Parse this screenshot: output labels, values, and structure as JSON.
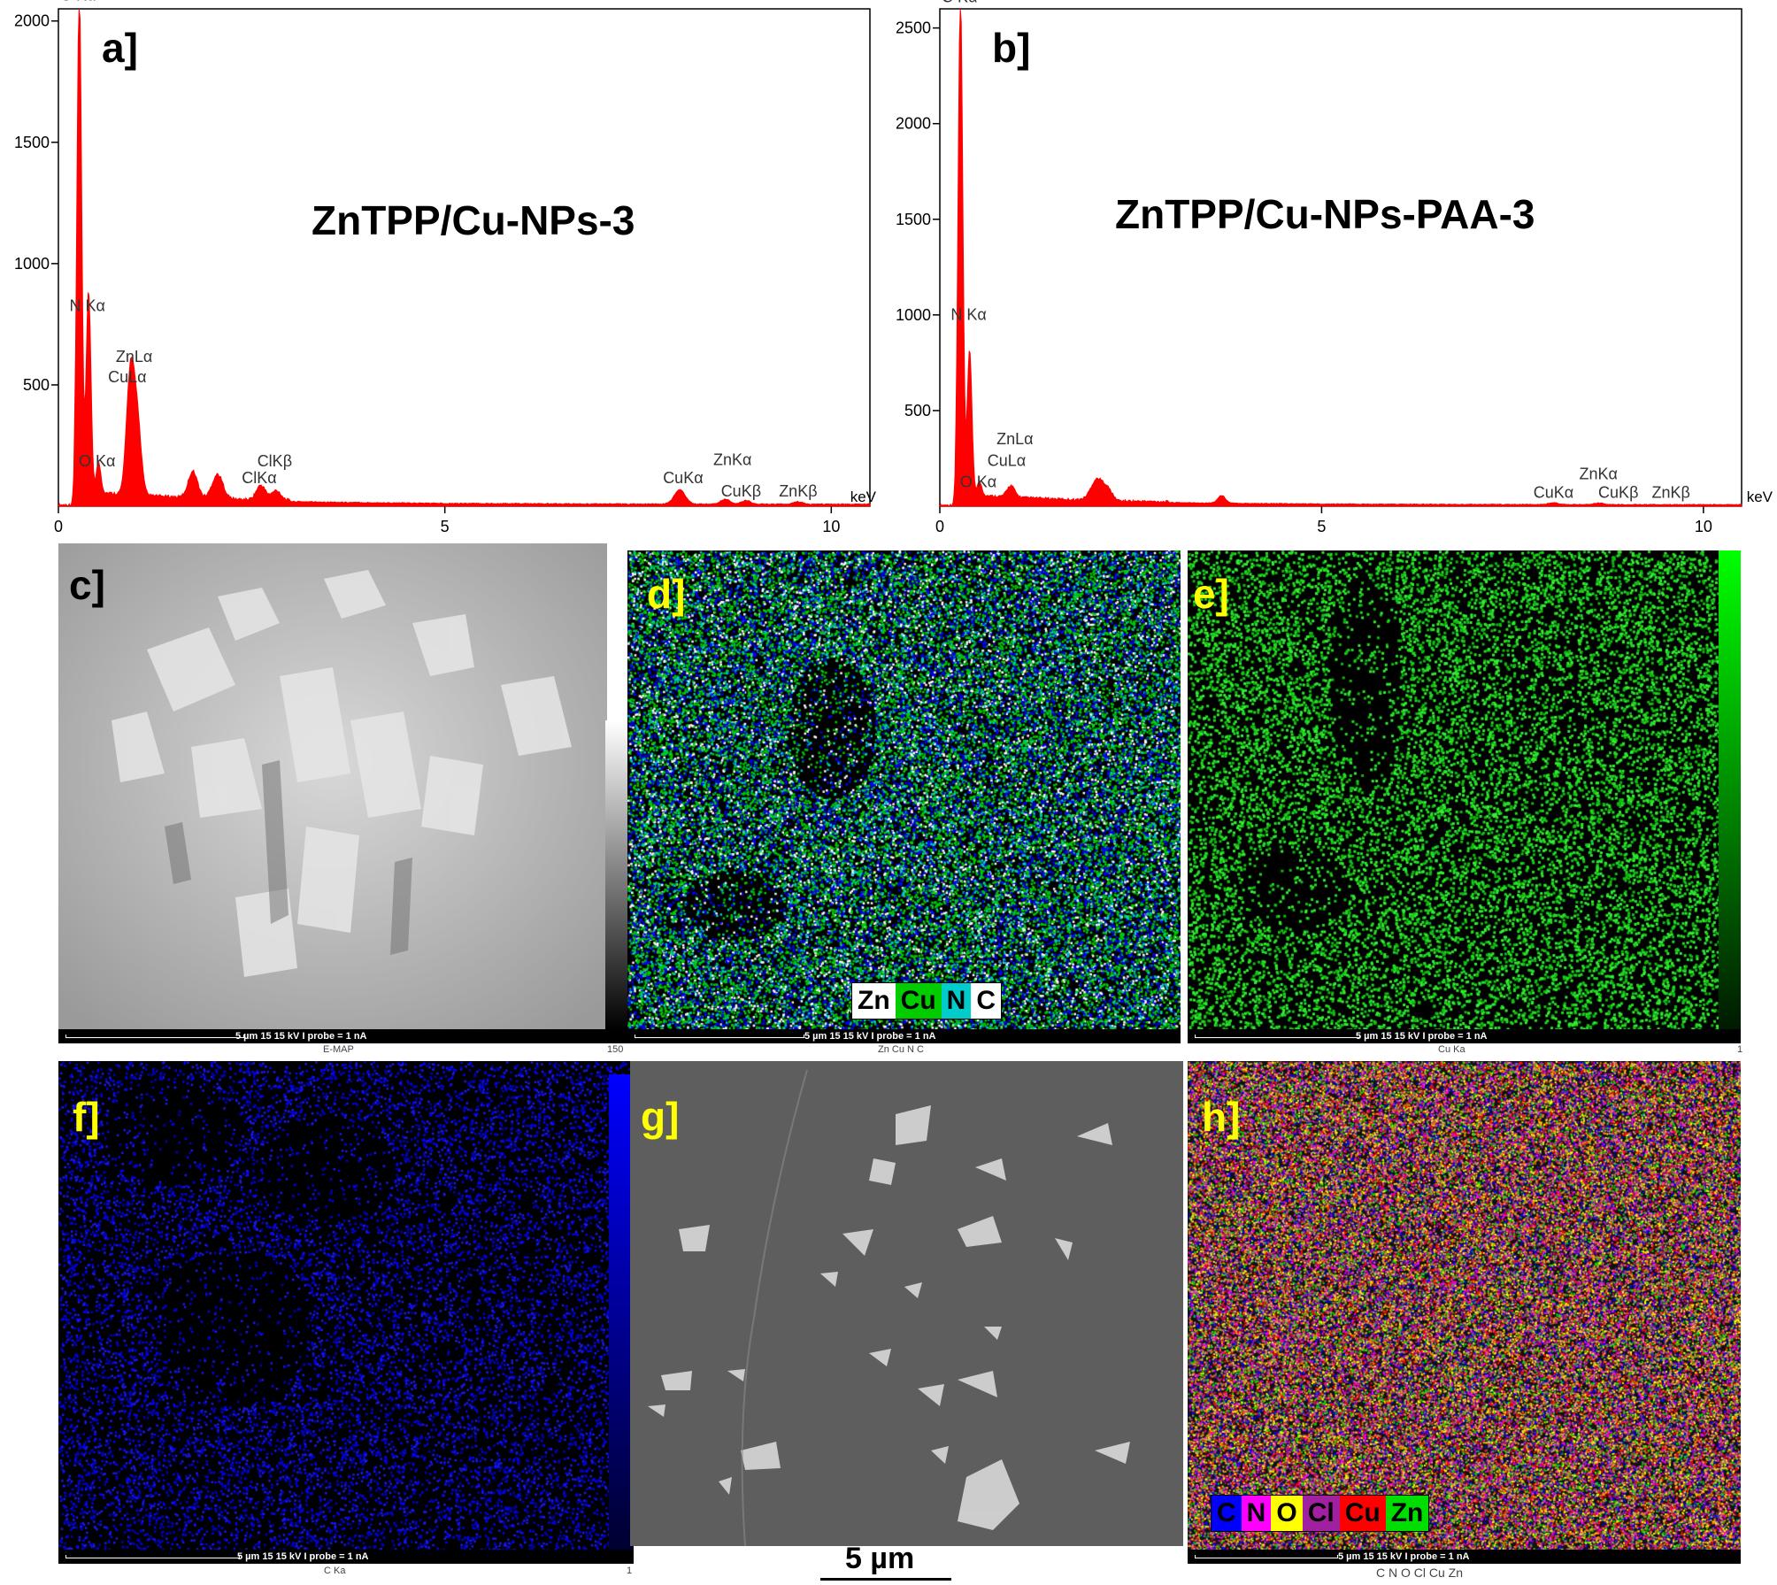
{
  "chart_data": [
    {
      "type": "line",
      "panel": "a]",
      "title": "ZnTPP/Cu-NPs-3",
      "xunit": "keV",
      "xlim": [
        0,
        10.5
      ],
      "ylim": [
        0,
        2050
      ],
      "xticks": [
        "0",
        "5",
        "10"
      ],
      "yticks": [
        "500",
        "1000",
        "1500",
        "2000"
      ],
      "color": "#ff0000",
      "peaks": [
        {
          "x": 0.27,
          "y": 2050,
          "w": 0.03
        },
        {
          "x": 0.39,
          "y": 830,
          "w": 0.03
        },
        {
          "x": 0.52,
          "y": 120,
          "w": 0.03
        },
        {
          "x": 0.93,
          "y": 490,
          "w": 0.05
        },
        {
          "x": 1.02,
          "y": 300,
          "w": 0.05
        },
        {
          "x": 1.74,
          "y": 110,
          "w": 0.06
        },
        {
          "x": 2.06,
          "y": 100,
          "w": 0.07
        },
        {
          "x": 2.62,
          "y": 60,
          "w": 0.06
        },
        {
          "x": 2.82,
          "y": 40,
          "w": 0.06
        },
        {
          "x": 8.04,
          "y": 60,
          "w": 0.07
        },
        {
          "x": 8.63,
          "y": 20,
          "w": 0.06
        },
        {
          "x": 8.9,
          "y": 15,
          "w": 0.06
        },
        {
          "x": 9.57,
          "y": 10,
          "w": 0.06
        }
      ],
      "labels": [
        {
          "text": "C Kα",
          "x": 0.0,
          "y": 2085
        },
        {
          "text": "N Kα",
          "x": 0.12,
          "y": 805
        },
        {
          "text": "O Kα",
          "x": 0.24,
          "y": 165
        },
        {
          "text": "ZnLα",
          "x": 0.72,
          "y": 595
        },
        {
          "text": "CuLα",
          "x": 0.62,
          "y": 510
        },
        {
          "text": "ClKβ",
          "x": 2.55,
          "y": 165
        },
        {
          "text": "ClKα",
          "x": 2.35,
          "y": 95
        },
        {
          "text": "CuKα",
          "x": 7.8,
          "y": 95
        },
        {
          "text": "ZnKα",
          "x": 8.45,
          "y": 170
        },
        {
          "text": "CuKβ",
          "x": 8.55,
          "y": 40
        },
        {
          "text": "ZnKβ",
          "x": 9.3,
          "y": 40
        }
      ]
    },
    {
      "type": "line",
      "panel": "b]",
      "title": "ZnTPP/Cu-NPs-PAA-3",
      "xunit": "keV",
      "xlim": [
        0,
        10.5
      ],
      "ylim": [
        0,
        2600
      ],
      "xticks": [
        "0",
        "5",
        "10"
      ],
      "yticks": [
        "500",
        "1000",
        "1500",
        "2000",
        "2500"
      ],
      "color": "#ff0000",
      "peaks": [
        {
          "x": 0.27,
          "y": 2600,
          "w": 0.03
        },
        {
          "x": 0.39,
          "y": 760,
          "w": 0.03
        },
        {
          "x": 0.52,
          "y": 70,
          "w": 0.03
        },
        {
          "x": 0.93,
          "y": 60,
          "w": 0.05
        },
        {
          "x": 2.06,
          "y": 110,
          "w": 0.08
        },
        {
          "x": 2.2,
          "y": 50,
          "w": 0.06
        },
        {
          "x": 3.69,
          "y": 40,
          "w": 0.05
        },
        {
          "x": 8.04,
          "y": 10,
          "w": 0.06
        },
        {
          "x": 8.63,
          "y": 8,
          "w": 0.06
        }
      ],
      "labels": [
        {
          "text": "C Kα",
          "x": 0.0,
          "y": 2635
        },
        {
          "text": "N Kα",
          "x": 0.12,
          "y": 975
        },
        {
          "text": "O Kα",
          "x": 0.24,
          "y": 100
        },
        {
          "text": "ZnLα",
          "x": 0.72,
          "y": 325
        },
        {
          "text": "CuLα",
          "x": 0.6,
          "y": 210
        },
        {
          "text": "CuKα",
          "x": 7.75,
          "y": 45
        },
        {
          "text": "ZnKα",
          "x": 8.35,
          "y": 140
        },
        {
          "text": "CuKβ",
          "x": 8.6,
          "y": 45
        },
        {
          "text": "ZnKβ",
          "x": 9.3,
          "y": 45
        }
      ]
    }
  ],
  "panels": {
    "c": {
      "label": "c]",
      "footer": "5 µm   15 15 kV   I probe = 1 nA",
      "under_left": "E-MAP",
      "under_right": "150"
    },
    "d": {
      "label": "d]",
      "footer": "5 µm   15 15 kV   I probe = 1 nA",
      "under_left": "Zn Cu N  C",
      "legend": [
        "Zn",
        "Cu",
        "N",
        "C"
      ]
    },
    "e": {
      "label": "e]",
      "footer": "5 µm   15 15 kV   I probe = 1 nA",
      "under_left": "Cu Ka",
      "under_right": "1"
    },
    "f": {
      "label": "f]",
      "footer": "5 µm   15 15 kV   I probe = 1 nA",
      "under_left": "C  Ka",
      "under_right": "1"
    },
    "g": {
      "label": "g]",
      "scale": "5 µm"
    },
    "h": {
      "label": "h]",
      "footer": "5 µm   15 15 kV   I probe = 1 nA",
      "under_left": "C  N  O  Cl Cu Zn",
      "legend": [
        "C",
        "N",
        "O",
        "Cl",
        "Cu",
        "Zn"
      ]
    }
  },
  "colors": {
    "zn": "#ffffff",
    "cu": "#00cc00",
    "n": "#00cccc",
    "c": "#0000ff",
    "o": "#ffff00",
    "cl": "#a020a0",
    "cuh": "#ff0000",
    "nh": "#ff00ff",
    "label": "#ffff00"
  }
}
